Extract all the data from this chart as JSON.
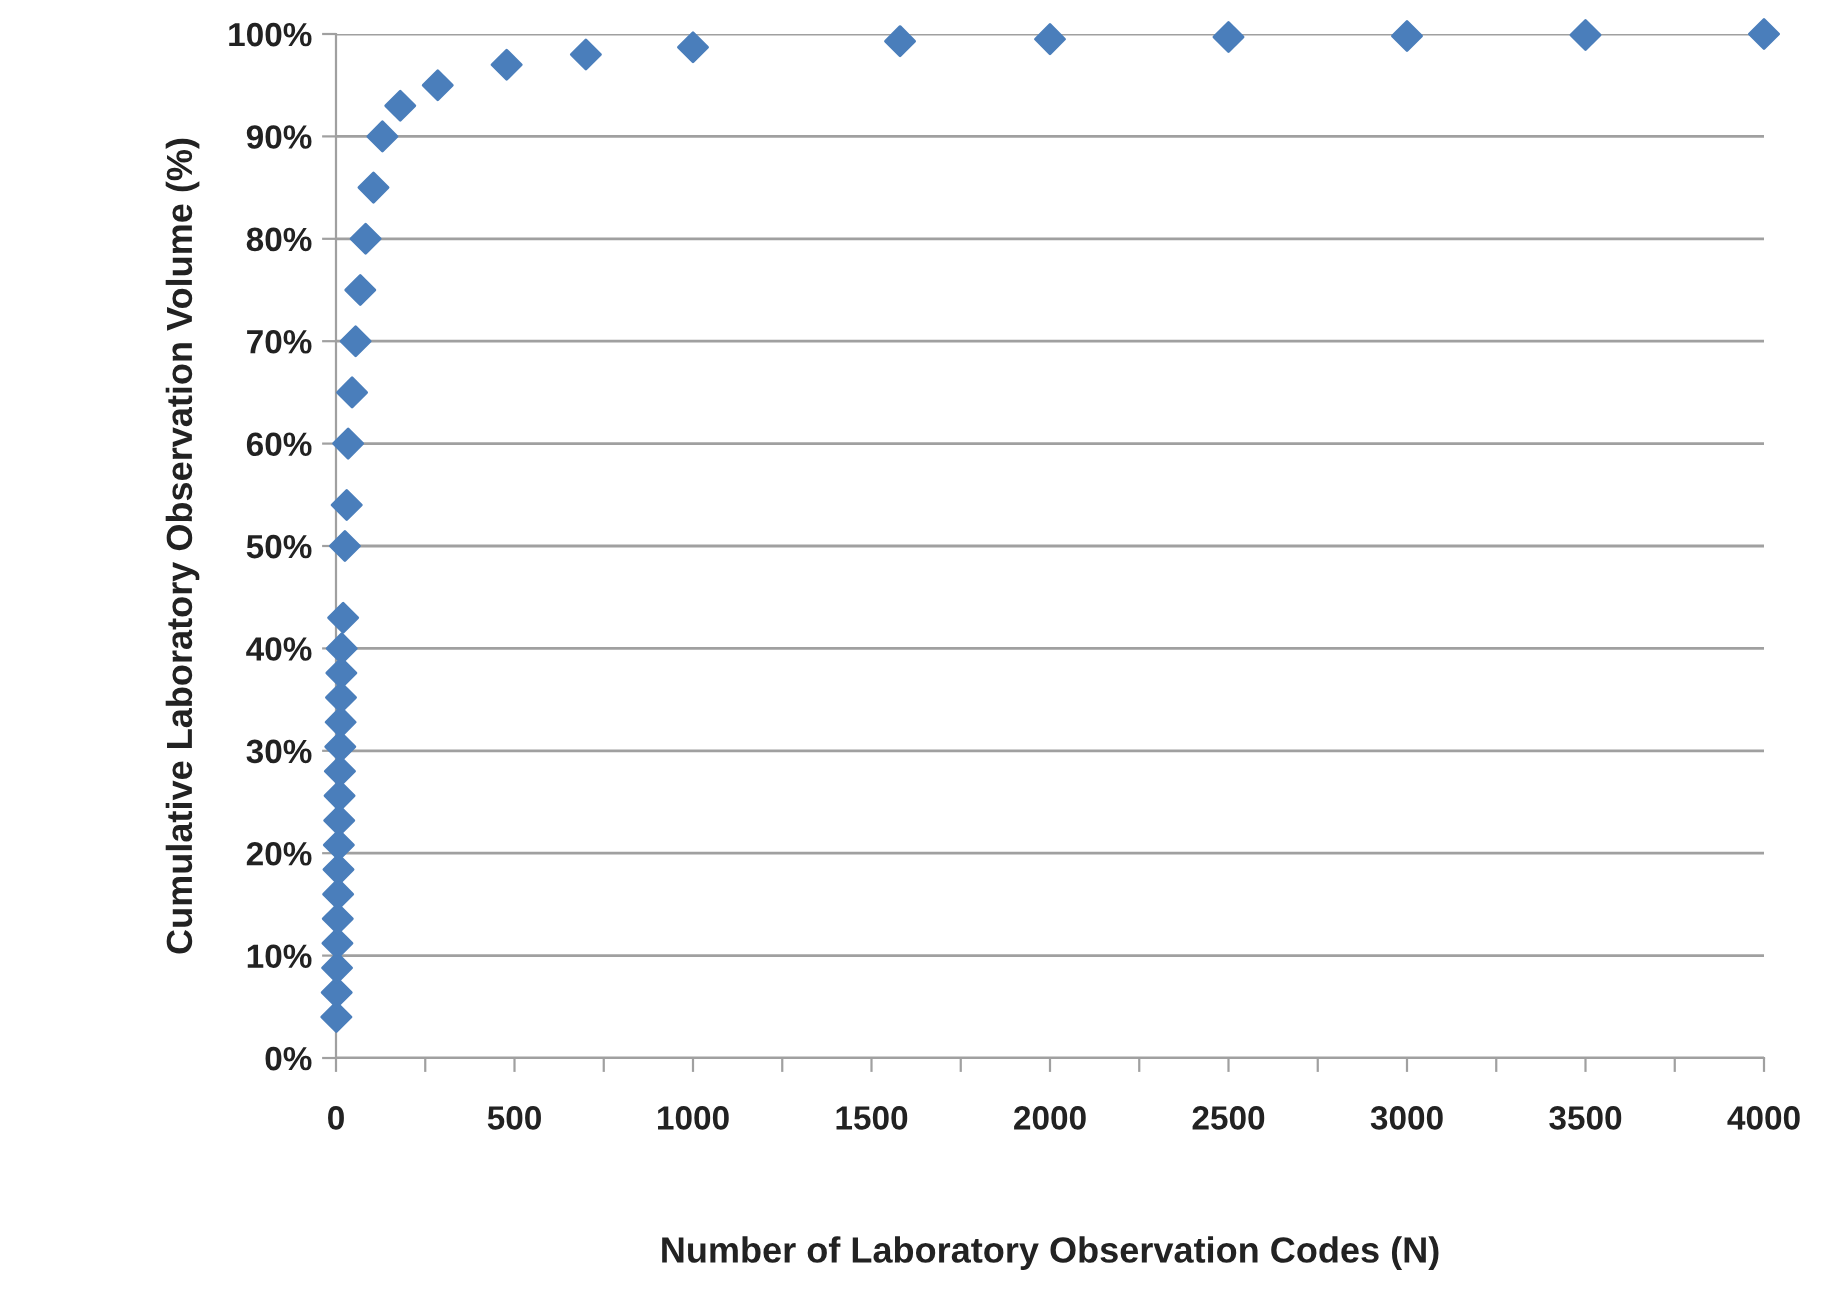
{
  "chart_data": {
    "type": "scatter",
    "xlabel": "Number of Laboratory Observation Codes (N)",
    "ylabel": "Cumulative Laboratory Observation Volume (%)",
    "marker": "diamond",
    "grid": "y",
    "legend": false,
    "series": [
      {
        "color": "#4a7ebb",
        "x": [
          1,
          2,
          3,
          4,
          5,
          6,
          7,
          8,
          9,
          10,
          11,
          12,
          13,
          14,
          15,
          16,
          20,
          25,
          30,
          34,
          45,
          55,
          68,
          83,
          105,
          130,
          180,
          285,
          478,
          700,
          1000,
          1580,
          2000,
          2500,
          3000,
          3500,
          4000
        ],
        "values": [
          4.0,
          6.4,
          8.8,
          11.2,
          13.6,
          16.0,
          18.4,
          20.8,
          23.2,
          25.6,
          28.0,
          30.4,
          32.8,
          35.2,
          37.6,
          40.0,
          43,
          50,
          54,
          60,
          65,
          70,
          75,
          80,
          85,
          90,
          93,
          95,
          97,
          98,
          98.7,
          99.3,
          99.5,
          99.7,
          99.8,
          99.9,
          100
        ]
      }
    ],
    "xlim": [
      0,
      4000
    ],
    "xticks": [
      0,
      {
        "value": 250,
        "label": null
      },
      500,
      {
        "value": 750,
        "label": null
      },
      1000,
      {
        "value": 1250,
        "label": null
      },
      1500,
      {
        "value": 1750,
        "label": null
      },
      2000,
      {
        "value": 2250,
        "label": null
      },
      2500,
      {
        "value": 2750,
        "label": null
      },
      3000,
      {
        "value": 3250,
        "label": null
      },
      3500,
      {
        "value": 3750,
        "label": null
      },
      4000
    ],
    "ylim": [
      0,
      100
    ],
    "yticks": [
      {
        "value": 0,
        "label": "0%"
      },
      {
        "value": 10,
        "label": "10%"
      },
      {
        "value": 20,
        "label": "20%"
      },
      {
        "value": 30,
        "label": "30%"
      },
      {
        "value": 40,
        "label": "40%"
      },
      {
        "value": 50,
        "label": "50%"
      },
      {
        "value": 60,
        "label": "60%"
      },
      {
        "value": 70,
        "label": "70%"
      },
      {
        "value": 80,
        "label": "80%"
      },
      {
        "value": 90,
        "label": "90%"
      },
      {
        "value": 100,
        "label": "100%"
      }
    ]
  }
}
